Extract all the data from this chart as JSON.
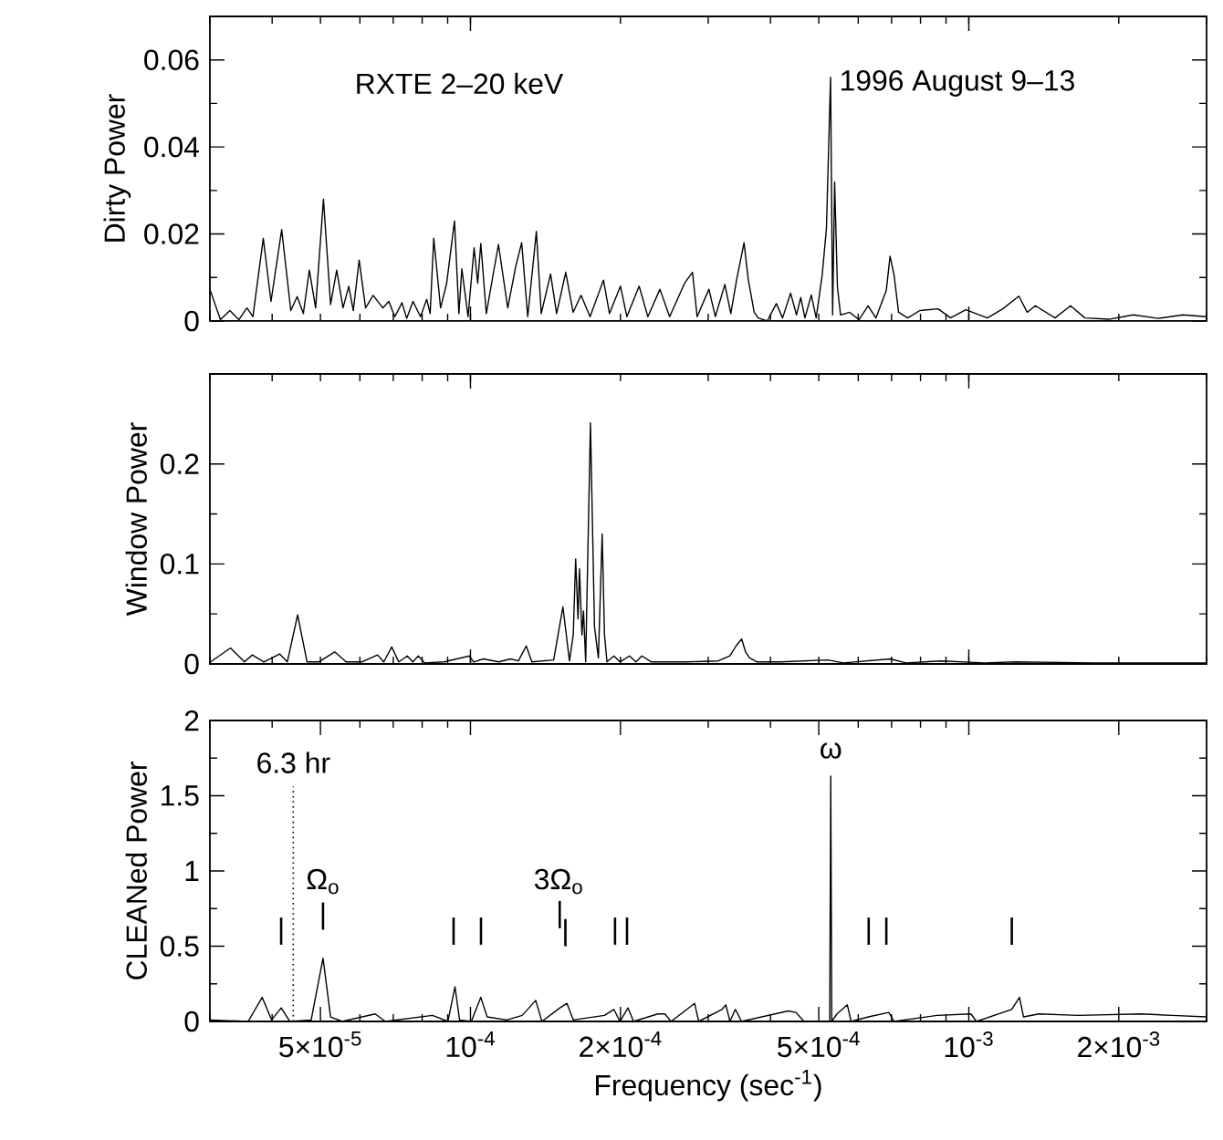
{
  "chart_data": [
    {
      "type": "line",
      "ylabel": "Dirty Power",
      "log": "x",
      "xlim": [
        3e-05,
        0.003
      ],
      "ylim": [
        0,
        0.07
      ],
      "yticks": [
        0,
        0.02,
        0.04,
        0.06
      ],
      "tick_labels": "y",
      "annotations": [
        "RXTE 2–20 keV",
        "1996 August 9–13"
      ],
      "series": [
        {
          "color": "#000000",
          "x": [
            3e-05,
            3.15e-05,
            3.29e-05,
            3.43e-05,
            3.56e-05,
            3.66e-05,
            3.84e-05,
            3.98e-05,
            4.18e-05,
            4.36e-05,
            4.49e-05,
            4.62e-05,
            4.75e-05,
            4.89e-05,
            5.07e-05,
            5.24e-05,
            5.39e-05,
            5.55e-05,
            5.7e-05,
            5.82e-05,
            5.98e-05,
            6.16e-05,
            6.38e-05,
            6.67e-05,
            6.86e-05,
            7.05e-05,
            7.29e-05,
            7.45e-05,
            7.67e-05,
            7.94e-05,
            8.17e-05,
            8.3e-05,
            8.44e-05,
            8.71e-05,
            8.96e-05,
            9.29e-05,
            9.48e-05,
            9.61e-05,
            9.89e-05,
            0.0001017,
            0.0001034,
            0.0001049,
            0.0001076,
            0.0001138,
            0.0001188,
            0.0001233,
            0.0001267,
            0.0001303,
            0.0001356,
            0.0001387,
            0.0001448,
            0.0001489,
            0.0001553,
            0.0001607,
            0.0001667,
            0.0001738,
            0.0001849,
            0.0001901,
            0.0002,
            0.000206,
            0.000218,
            0.000227,
            0.00024,
            0.000251,
            0.000269,
            0.000279,
            0.000285,
            0.000301,
            0.00031,
            0.000324,
            0.000333,
            0.000342,
            0.000354,
            0.000361,
            0.000371,
            0.000378,
            0.000394,
            0.000411,
            0.000423,
            0.000439,
            0.000451,
            0.00046,
            0.000469,
            0.000483,
            0.000494,
            0.000508,
            0.000518,
            0.000528,
            0.000533,
            0.000538,
            0.000545,
            0.000553,
            0.000577,
            0.000602,
            0.000628,
            0.000651,
            0.000683,
            0.000695,
            0.000708,
            0.000723,
            0.000754,
            0.000798,
            0.000868,
            0.000919,
            0.000986,
            0.00109,
            0.00117,
            0.00126,
            0.00131,
            0.00136,
            0.00149,
            0.0016,
            0.00171,
            0.00191,
            0.00214,
            0.0024,
            0.00269,
            0.003
          ],
          "values": [
            0.0073,
            0.0003,
            0.0024,
            0.0003,
            0.003,
            0.001,
            0.019,
            0.0045,
            0.021,
            0.0024,
            0.0056,
            0.0017,
            0.0117,
            0.003,
            0.028,
            0.0038,
            0.0117,
            0.003,
            0.008,
            0.0024,
            0.014,
            0.003,
            0.0059,
            0.003,
            0.0045,
            0.001,
            0.0042,
            0.0006,
            0.0045,
            0.001,
            0.005,
            0.0017,
            0.019,
            0.003,
            0.0087,
            0.023,
            0.0017,
            0.012,
            0.001,
            0.0168,
            0.0087,
            0.0178,
            0.0017,
            0.0176,
            0.003,
            0.0126,
            0.018,
            0.001,
            0.0206,
            0.0017,
            0.0108,
            0.0017,
            0.0112,
            0.002,
            0.0059,
            0.001,
            0.0094,
            0.0017,
            0.008,
            0.001,
            0.008,
            0.001,
            0.0073,
            0.001,
            0.0087,
            0.0112,
            0.001,
            0.0073,
            0.001,
            0.0084,
            0.0017,
            0.0094,
            0.018,
            0.0095,
            0.002,
            0.0007,
            0,
            0.004,
            0.0007,
            0.0064,
            0.0014,
            0.0054,
            0.0007,
            0.006,
            0.0007,
            0.0106,
            0.0213,
            0.056,
            0.0014,
            0.0319,
            0.0078,
            0.0014,
            0.002,
            0.0003,
            0.0035,
            0.0007,
            0.007,
            0.0149,
            0.0106,
            0.002,
            0.0007,
            0.0024,
            0.0028,
            0.0007,
            0.0026,
            0.0007,
            0.0028,
            0.0057,
            0.002,
            0.0035,
            0.0007,
            0.0035,
            0.0007,
            0.0004,
            0.0014,
            0.0006,
            0.0014,
            0.001
          ]
        }
      ]
    },
    {
      "type": "line",
      "ylabel": "Window Power",
      "log": "x",
      "xlim": [
        3e-05,
        0.003
      ],
      "ylim": [
        0,
        0.29
      ],
      "yticks": [
        0,
        0.1,
        0.2
      ],
      "tick_labels": "y",
      "series": [
        {
          "color": "#000000",
          "x": [
            3.01e-05,
            3.3e-05,
            3.52e-05,
            3.65e-05,
            3.85e-05,
            4.14e-05,
            4.29e-05,
            4.5e-05,
            4.7e-05,
            4.96e-05,
            5.34e-05,
            5.63e-05,
            6.05e-05,
            6.51e-05,
            6.7e-05,
            6.95e-05,
            7.18e-05,
            7.47e-05,
            7.66e-05,
            7.86e-05,
            8.09e-05,
            8.85e-05,
            9.94e-05,
            0.0001015,
            0.0001061,
            0.000114,
            0.0001204,
            0.0001248,
            0.0001294,
            0.0001328,
            0.0001469,
            0.0001533,
            0.000158,
            0.0001608,
            0.0001626,
            0.0001644,
            0.0001655,
            0.0001674,
            0.0001686,
            0.0001703,
            0.0001741,
            0.0001774,
            0.0001806,
            0.0001838,
            0.0001858,
            0.0001879,
            0.000194,
            0.0001996,
            0.0002085,
            0.0002148,
            0.0002208,
            0.0002307,
            0.0002717,
            0.000314,
            0.0003316,
            0.0003412,
            0.00035,
            0.0003565,
            0.0003631,
            0.0003761,
            0.0004195,
            0.000521,
            0.00056,
            0.000696,
            0.000748,
            0.000881,
            0.001074,
            0.001242,
            0.001782,
            0.003
          ],
          "values": [
            0.002,
            0.016,
            0.002,
            0.009,
            0.002,
            0.01,
            0.002,
            0.049,
            0.002,
            0.002,
            0.012,
            0.002,
            0.002,
            0.009,
            0.002,
            0.017,
            0.002,
            0.008,
            0.002,
            0.008,
            0.001,
            0.002,
            0.008,
            0.002,
            0.005,
            0.002,
            0.005,
            0.003,
            0.018,
            0.002,
            0.004,
            0.057,
            0.003,
            0.029,
            0.105,
            0.045,
            0.095,
            0.029,
            0.053,
            0.002,
            0.241,
            0.037,
            0.006,
            0.13,
            0.029,
            0.002,
            0.008,
            0.002,
            0.008,
            0.002,
            0.008,
            0.002,
            0.002,
            0.003,
            0.008,
            0.018,
            0.025,
            0.012,
            0.006,
            0.002,
            0.002,
            0.004,
            0.001,
            0.005,
            0.001,
            0.003,
            0.001,
            0.002,
            0.001,
            0.001
          ]
        }
      ]
    },
    {
      "type": "line",
      "ylabel": "CLEANed Power",
      "xlabel": "Frequency (sec$^{-1}$)",
      "log": "x",
      "xlim": [
        3e-05,
        0.003
      ],
      "ylim": [
        0,
        2
      ],
      "yticks": [
        0,
        0.5,
        1,
        1.5,
        2
      ],
      "xticks": [
        {
          "value": 5e-05,
          "label": "5×10$^{-5}$"
        },
        {
          "value": 0.0001,
          "label": "10$^{-4}$"
        },
        {
          "value": 0.0002,
          "label": "2×10$^{-4}$"
        },
        {
          "value": 0.0005,
          "label": "5×10$^{-4}$"
        },
        {
          "value": 0.001,
          "label": "10$^{-3}$"
        },
        {
          "value": 0.002,
          "label": "2×10$^{-3}$"
        }
      ],
      "ref_lines": [
        {
          "axis": "x",
          "value": 4.41e-05,
          "label": "6.3 hr",
          "line_style": "dotted"
        }
      ],
      "annotations": [
        "Ω$_{o}$",
        "3Ω$_{o}$",
        "ω",
        "|",
        "|",
        "|",
        "|",
        "|",
        "|",
        "|",
        "|",
        "|",
        "|",
        "|"
      ],
      "series": [
        {
          "color": "#000000",
          "x": [
            3.01e-05,
            3.58e-05,
            3.82e-05,
            3.99e-05,
            4.17e-05,
            4.34e-05,
            4.79e-05,
            5.06e-05,
            5.24e-05,
            5.53e-05,
            6.44e-05,
            6.75e-05,
            8.39e-05,
            9.01e-05,
            9.31e-05,
            9.51e-05,
            0.0001004,
            0.0001049,
            0.000108,
            0.0001183,
            0.000127,
            0.0001352,
            0.0001391,
            0.0001512,
            0.0001562,
            0.0001608,
            0.0001858,
            0.000194,
            0.0001996,
            0.0002071,
            0.0002125,
            0.0002377,
            0.0002455,
            0.0002527,
            0.0002817,
            0.0002871,
            0.0003196,
            0.0003255,
            0.0003316,
            0.0003401,
            0.00035,
            0.0004341,
            0.0004501,
            0.0004668,
            0.000526,
            0.0005284,
            0.000531,
            0.0005439,
            0.0005705,
            0.0005805,
            0.000629,
            0.000691,
            0.000708,
            0.000864,
            0.00101,
            0.001036,
            0.001219,
            0.001264,
            0.001288,
            0.001384,
            0.001658,
            0.002215,
            0.002559,
            0.003
          ],
          "values": [
            0.01,
            0,
            0.16,
            0.01,
            0.09,
            0,
            0.01,
            0.42,
            0.03,
            0,
            0.05,
            0,
            0.04,
            0,
            0.23,
            0.01,
            0,
            0.16,
            0.03,
            0.01,
            0.04,
            0.14,
            0,
            0.09,
            0.12,
            0.01,
            0.04,
            0.08,
            0,
            0.09,
            0,
            0.05,
            0.05,
            0,
            0.12,
            0,
            0.08,
            0.11,
            0,
            0.08,
            0,
            0.07,
            0.06,
            0,
            0,
            1.63,
            0,
            0.05,
            0.11,
            0,
            0.03,
            0.06,
            0,
            0.04,
            0.05,
            0,
            0.08,
            0.16,
            0.03,
            0.05,
            0.04,
            0.05,
            0.04,
            0.03
          ]
        }
      ]
    }
  ]
}
